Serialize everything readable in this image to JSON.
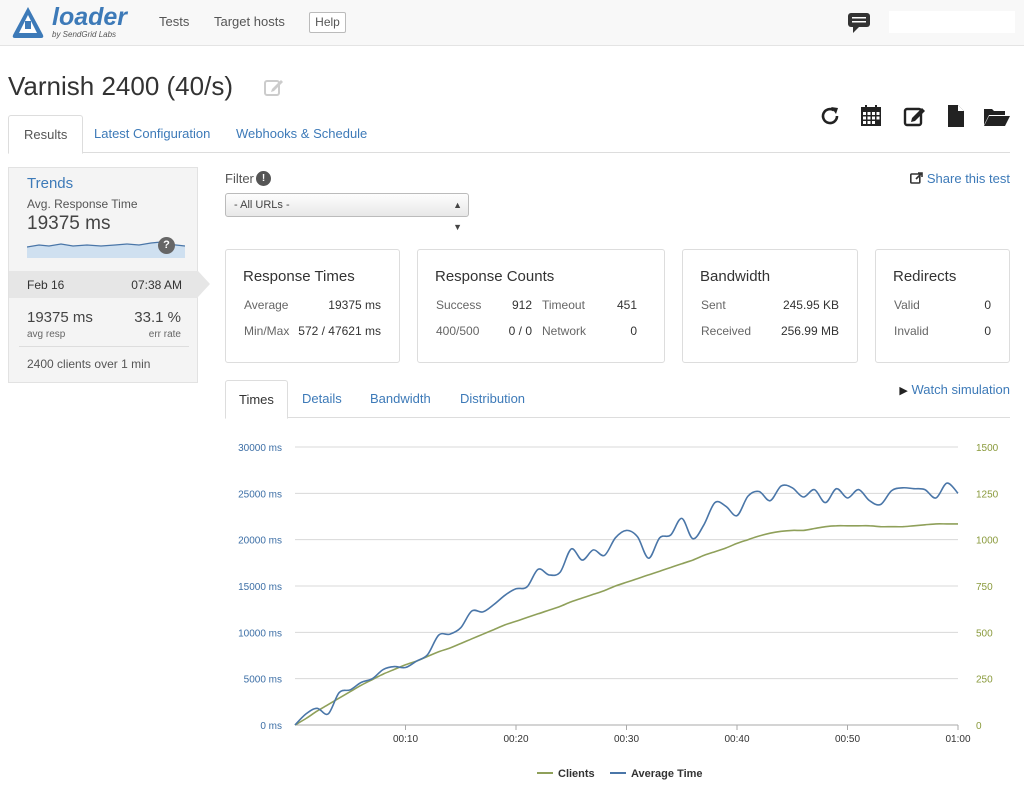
{
  "app": {
    "logo_text": "loader",
    "logo_sub": "by SendGrid Labs",
    "nav": [
      "Tests",
      "Target hosts"
    ],
    "help_label": "Help"
  },
  "page": {
    "title": "Varnish 2400 (40/s)",
    "tabs": [
      "Results",
      "Latest Configuration",
      "Webhooks & Schedule"
    ],
    "active_tab": "Results"
  },
  "trends": {
    "title": "Trends",
    "metric_label": "Avg. Response Time",
    "metric_value": "19375 ms",
    "help_glyph": "?",
    "run": {
      "date": "Feb 16",
      "time": "07:38 AM",
      "avg_resp_value": "19375 ms",
      "avg_resp_label": "avg resp",
      "err_rate_value": "33.1 %",
      "err_rate_label": "err rate",
      "clients": "2400",
      "clients_mid": "clients over",
      "duration": "1",
      "duration_unit": "min"
    }
  },
  "filter": {
    "label": "Filter",
    "info_glyph": "!",
    "selected": "- All URLs -",
    "share_label": "Share this test"
  },
  "stats": {
    "response_times": {
      "title": "Response Times",
      "average_label": "Average",
      "average_value": "19375 ms",
      "minmax_label": "Min/Max",
      "minmax_value": "572 / 47621 ms"
    },
    "response_counts": {
      "title": "Response Counts",
      "success_label": "Success",
      "success_value": "912",
      "timeout_label": "Timeout",
      "timeout_value": "451",
      "err_label": "400/500",
      "err_value": "0 / 0",
      "network_label": "Network",
      "network_value": "0"
    },
    "bandwidth": {
      "title": "Bandwidth",
      "sent_label": "Sent",
      "sent_value": "245.95 KB",
      "received_label": "Received",
      "received_value": "256.99 MB"
    },
    "redirects": {
      "title": "Redirects",
      "valid_label": "Valid",
      "valid_value": "0",
      "invalid_label": "Invalid",
      "invalid_value": "0"
    }
  },
  "subtabs": [
    "Times",
    "Details",
    "Bandwidth",
    "Distribution"
  ],
  "watch_label": "Watch simulation",
  "colors": {
    "accent": "#3d7ab8",
    "avg_time": "#4a76a8",
    "clients": "#8fa05a"
  },
  "icons": [
    "logo-icon",
    "comment-icon",
    "edit-icon",
    "refresh-icon",
    "calendar-icon",
    "edit-icon",
    "file-icon",
    "folder-open-icon",
    "share-icon",
    "play-icon"
  ],
  "chart_data": {
    "type": "line",
    "x": [
      "00:00",
      "00:01",
      "00:02",
      "00:03",
      "00:04",
      "00:05",
      "00:06",
      "00:07",
      "00:08",
      "00:09",
      "00:10",
      "00:11",
      "00:12",
      "00:13",
      "00:14",
      "00:15",
      "00:16",
      "00:17",
      "00:18",
      "00:19",
      "00:20",
      "00:21",
      "00:22",
      "00:23",
      "00:24",
      "00:25",
      "00:26",
      "00:27",
      "00:28",
      "00:29",
      "00:30",
      "00:31",
      "00:32",
      "00:33",
      "00:34",
      "00:35",
      "00:36",
      "00:37",
      "00:38",
      "00:39",
      "00:40",
      "00:41",
      "00:42",
      "00:43",
      "00:44",
      "00:45",
      "00:46",
      "00:47",
      "00:48",
      "00:49",
      "00:50",
      "00:51",
      "00:52",
      "00:53",
      "00:54",
      "00:55",
      "00:56",
      "00:57",
      "00:58",
      "00:59",
      "01:00"
    ],
    "xticks": [
      "00:10",
      "00:20",
      "00:30",
      "00:40",
      "00:50",
      "01:00"
    ],
    "yticks_left": [
      "0 ms",
      "5000 ms",
      "10000 ms",
      "15000 ms",
      "20000 ms",
      "25000 ms",
      "30000 ms"
    ],
    "yticks_right": [
      "0",
      "250",
      "500",
      "750",
      "1000",
      "1250",
      "1500"
    ],
    "ylim_left": [
      0,
      30000
    ],
    "ylim_right": [
      0,
      1500
    ],
    "grid": true,
    "legend_position": "bottom",
    "series": [
      {
        "name": "Clients",
        "axis": "right",
        "values": [
          0,
          35,
          75,
          110,
          145,
          180,
          215,
          245,
          275,
          300,
          325,
          345,
          370,
          395,
          415,
          440,
          465,
          490,
          515,
          540,
          560,
          580,
          600,
          620,
          640,
          665,
          685,
          705,
          725,
          750,
          770,
          790,
          810,
          830,
          850,
          870,
          890,
          915,
          935,
          955,
          980,
          1000,
          1020,
          1035,
          1045,
          1050,
          1050,
          1060,
          1070,
          1075,
          1075,
          1075,
          1075,
          1070,
          1070,
          1070,
          1075,
          1080,
          1085,
          1085,
          1085
        ]
      },
      {
        "name": "Average Time",
        "axis": "left",
        "values": [
          0,
          1200,
          1800,
          1200,
          3500,
          3800,
          4600,
          5000,
          6000,
          6300,
          6200,
          6900,
          7600,
          9700,
          9800,
          10500,
          12300,
          12200,
          13000,
          14000,
          14700,
          14900,
          16800,
          16200,
          16500,
          19000,
          17800,
          18900,
          18300,
          20200,
          21000,
          20300,
          18000,
          20200,
          20500,
          22300,
          20100,
          21600,
          24000,
          23600,
          22600,
          24700,
          25200,
          24200,
          25800,
          25600,
          24600,
          25400,
          24000,
          25500,
          24500,
          25400,
          24200,
          23800,
          25300,
          25600,
          25500,
          25400,
          24500,
          26100,
          25000
        ]
      }
    ]
  }
}
